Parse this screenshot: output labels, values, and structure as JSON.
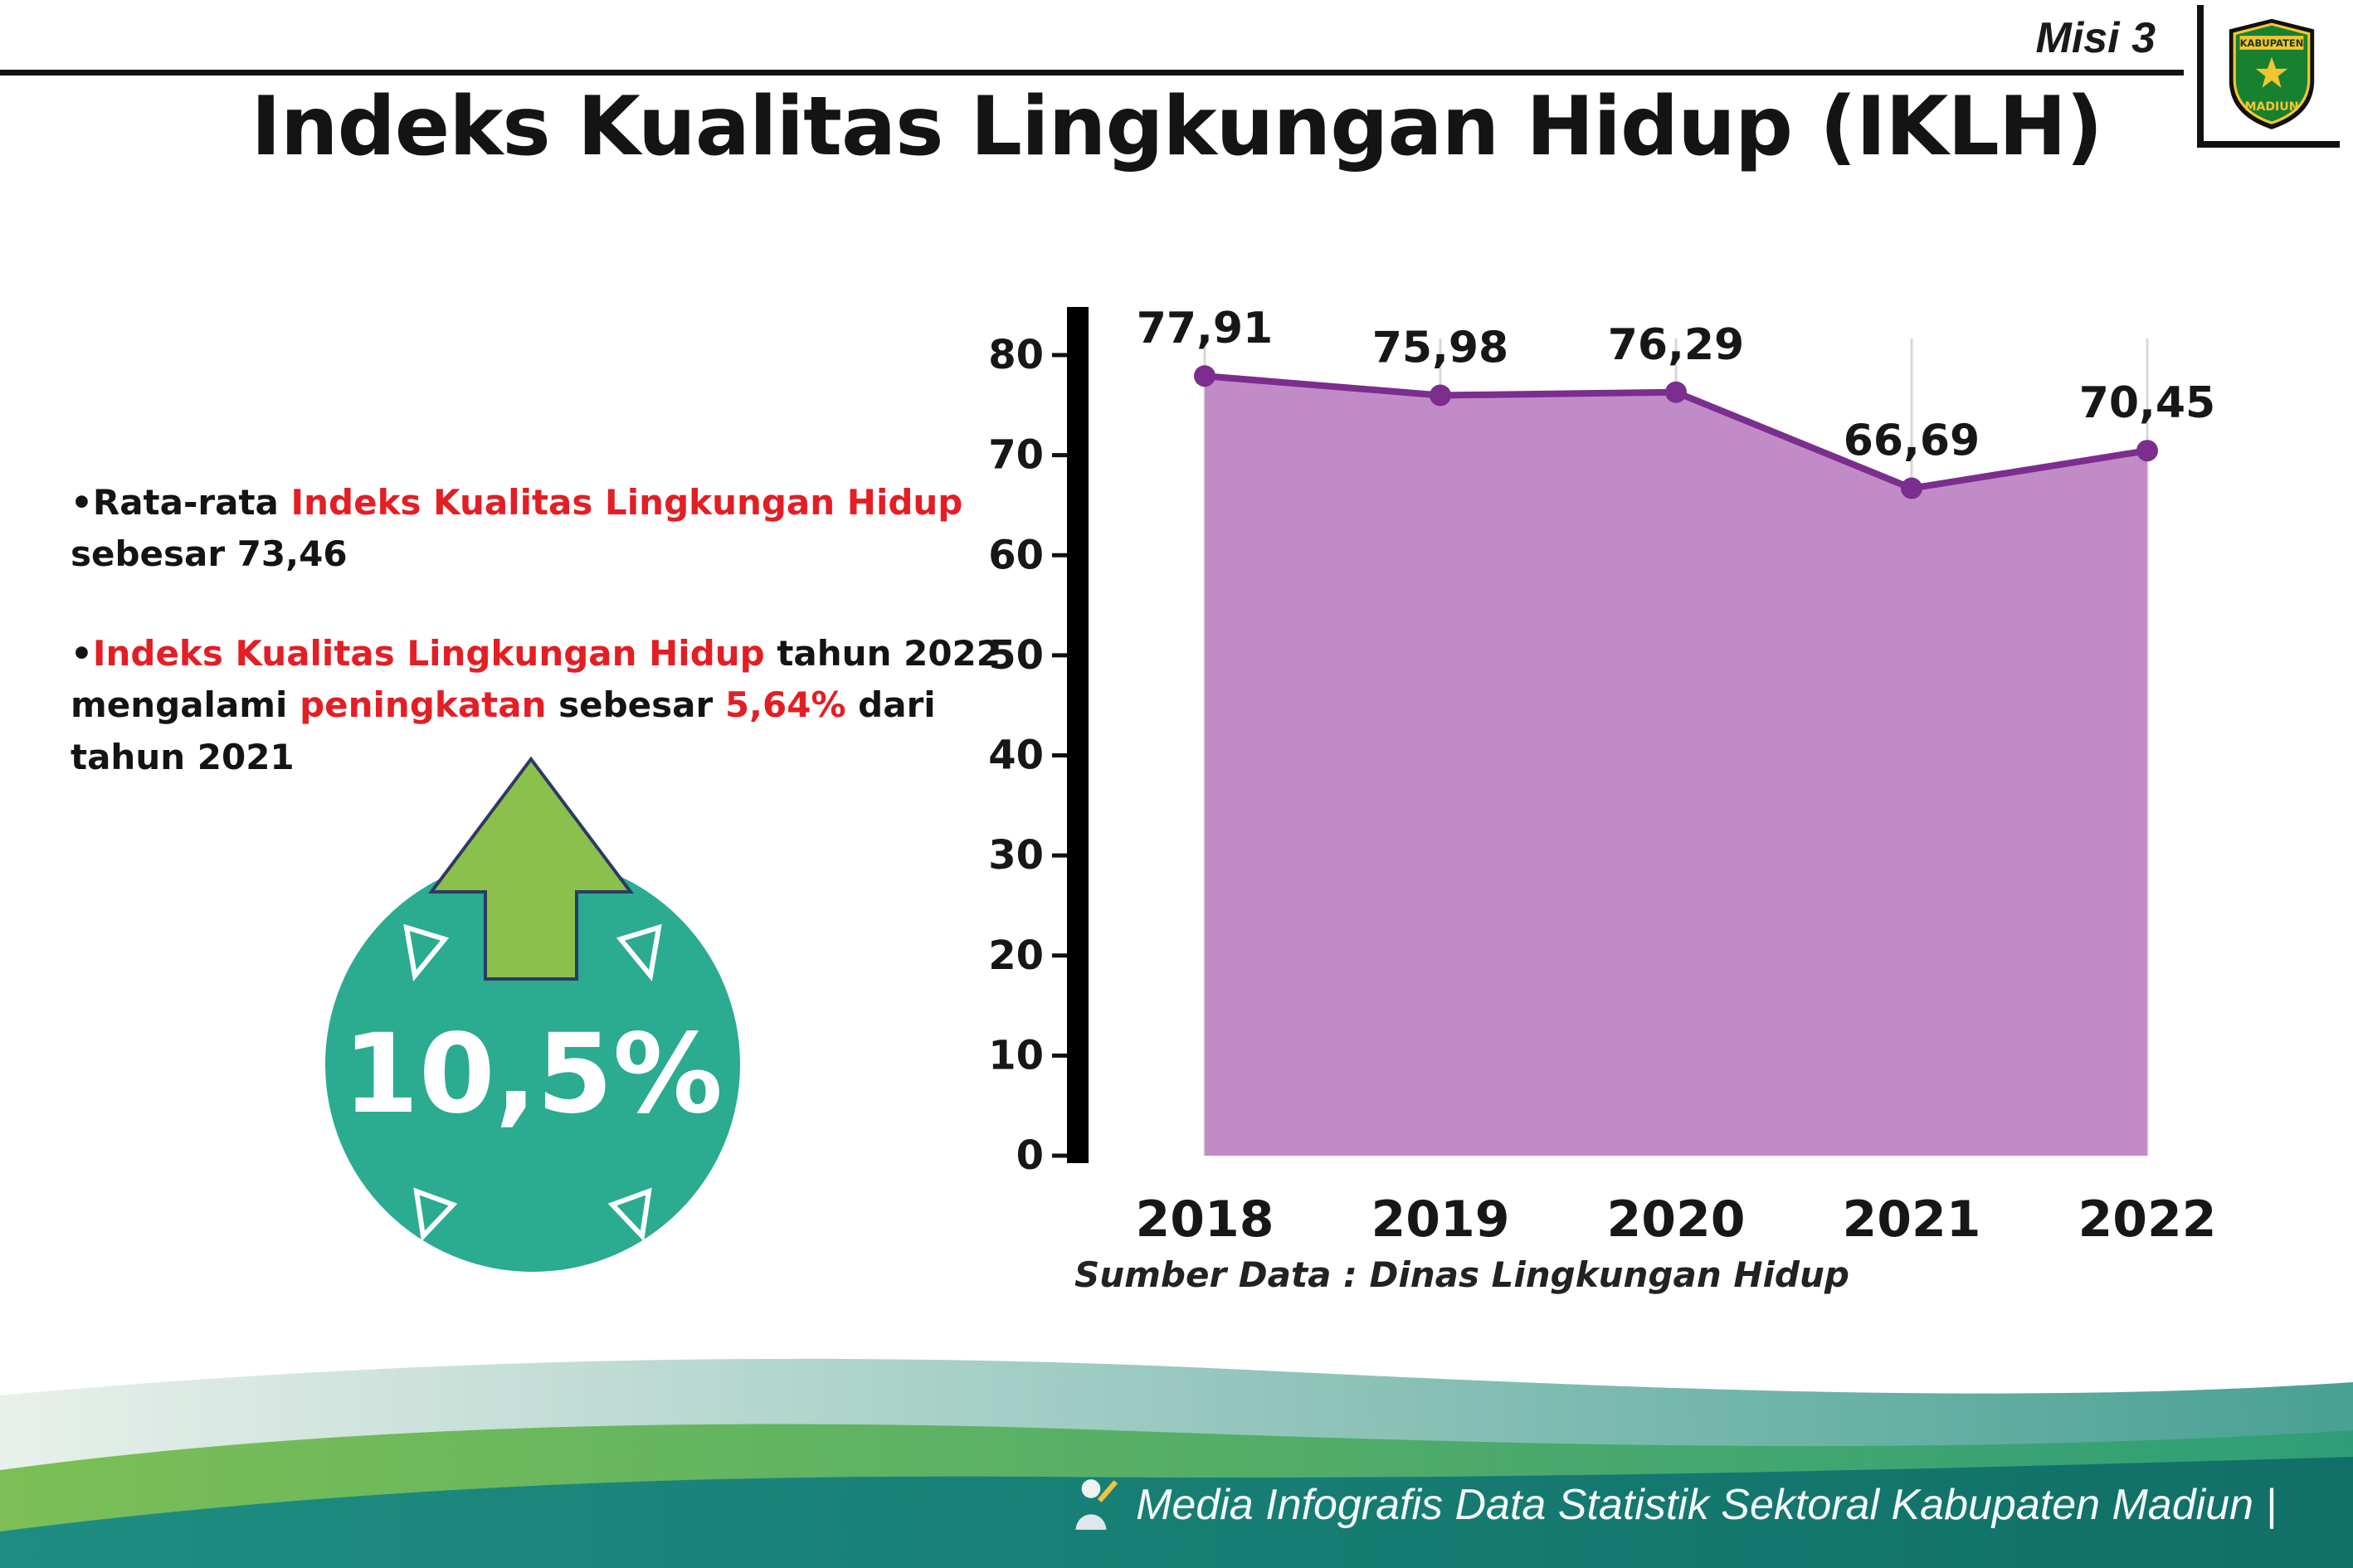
{
  "header": {
    "misi_label": "Misi 3",
    "title": "Indeks Kualitas Lingkungan Hidup (IKLH)",
    "logo": {
      "top_text": "KABUPATEN",
      "bottom_text": "MADIUN"
    }
  },
  "bullets": {
    "marker": "•",
    "b1": {
      "s1": "Rata-rata ",
      "s2": "Indeks Kualitas Lingkungan Hidup",
      "s3": " sebesar 73,46"
    },
    "b2": {
      "s1": "Indeks Kualitas Lingkungan Hidup",
      "s2": " tahun 2022 mengalami ",
      "s3": "peningkatan",
      "s4": " sebesar ",
      "s5": "5,64%",
      "s6": " dari tahun 2021"
    }
  },
  "badge": {
    "value": "10,5%",
    "circle_color": "#2BAB90",
    "arrow_color": "#8CC04D"
  },
  "chart_data": {
    "type": "area",
    "title": "Indeks Kualitas Lingkungan Hidup (IKLH)",
    "categories": [
      "2018",
      "2019",
      "2020",
      "2021",
      "2022"
    ],
    "values": [
      77.91,
      75.98,
      76.29,
      66.69,
      70.45
    ],
    "point_labels": [
      "77,91",
      "75,98",
      "76,29",
      "66,69",
      "70,45"
    ],
    "ylim": [
      0,
      80
    ],
    "yticks": [
      0,
      10,
      20,
      30,
      40,
      50,
      60,
      70,
      80
    ],
    "grid": "vertical",
    "legend": "none",
    "fill_color": "#C18BC8",
    "line_color": "#7B2E8E",
    "source_note": "Sumber Data : Dinas Lingkungan Hidup"
  },
  "footer": {
    "credit": "Media Infografis Data Statistik Sektoral Kabupaten Madiun |"
  }
}
